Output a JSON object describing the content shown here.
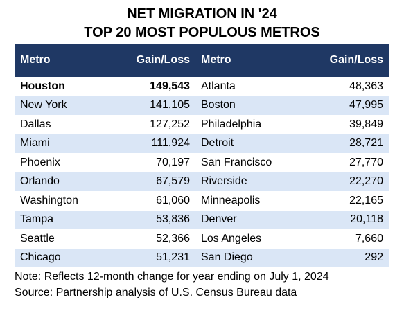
{
  "chart_data": {
    "type": "table",
    "title": "NET MIGRATION IN '24",
    "subtitle": "TOP 20 MOST POPULOUS METROS",
    "columns": [
      "Metro",
      "Gain/Loss",
      "Metro",
      "Gain/Loss"
    ],
    "rows": [
      {
        "metro_left": "Houston",
        "value_left": "149,543",
        "metro_right": "Atlanta",
        "value_right": "48,363"
      },
      {
        "metro_left": "New York",
        "value_left": "141,105",
        "metro_right": "Boston",
        "value_right": "47,995"
      },
      {
        "metro_left": "Dallas",
        "value_left": "127,252",
        "metro_right": "Philadelphia",
        "value_right": "39,849"
      },
      {
        "metro_left": "Miami",
        "value_left": "111,924",
        "metro_right": "Detroit",
        "value_right": "28,721"
      },
      {
        "metro_left": "Phoenix",
        "value_left": "70,197",
        "metro_right": "San Francisco",
        "value_right": "27,770"
      },
      {
        "metro_left": "Orlando",
        "value_left": "67,579",
        "metro_right": "Riverside",
        "value_right": "22,270"
      },
      {
        "metro_left": "Washington",
        "value_left": "61,060",
        "metro_right": "Minneapolis",
        "value_right": "22,165"
      },
      {
        "metro_left": "Tampa",
        "value_left": "53,836",
        "metro_right": "Denver",
        "value_right": "20,118"
      },
      {
        "metro_left": "Seattle",
        "value_left": "52,366",
        "metro_right": "Los Angeles",
        "value_right": "7,660"
      },
      {
        "metro_left": "Chicago",
        "value_left": "51,231",
        "metro_right": "San Diego",
        "value_right": "292"
      }
    ],
    "notes": [
      "Note: Reflects 12-month change for year ending on July 1, 2024",
      "Source: Partnership analysis of U.S. Census Bureau data"
    ],
    "colors": {
      "header_bg": "#1f3864",
      "header_text": "#ffffff",
      "stripe": "#dae6f6"
    }
  }
}
